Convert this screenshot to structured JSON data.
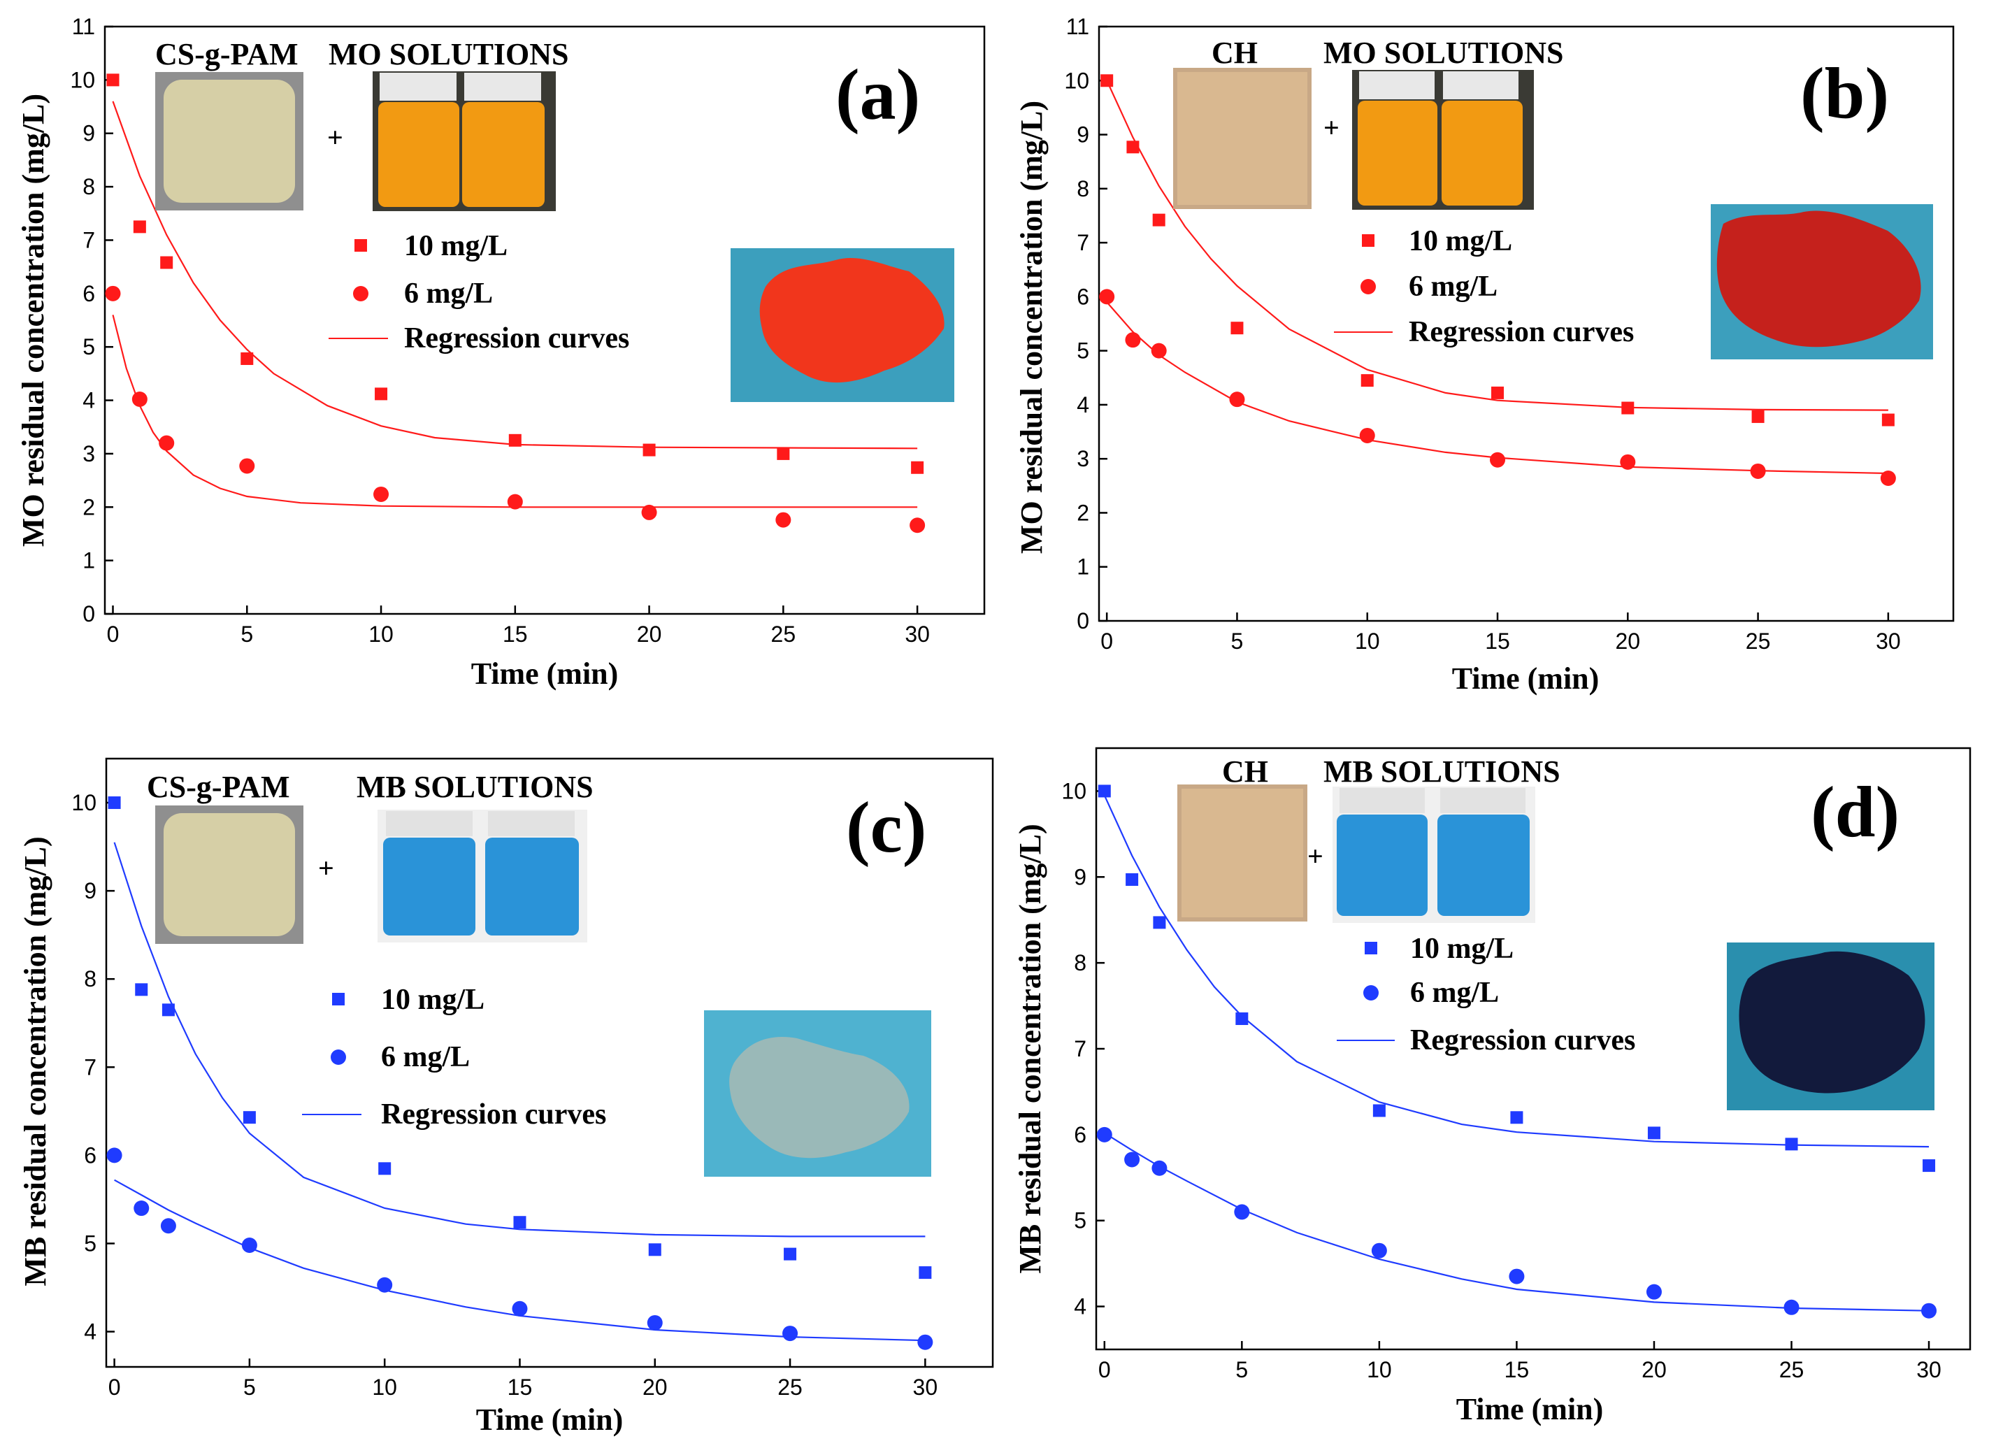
{
  "chart_data": [
    {
      "type": "scatter",
      "panel_label": "(a)",
      "xlabel": "Time (min)",
      "ylabel": "MO residual concentration (mg/L)",
      "xlim": [
        -0.3,
        32.5
      ],
      "ylim": [
        0,
        11
      ],
      "xticks": [
        0,
        5,
        10,
        15,
        20,
        25,
        30
      ],
      "yticks": [
        0,
        1,
        2,
        3,
        4,
        5,
        6,
        7,
        8,
        9,
        10,
        11
      ],
      "color": "#ff1a1a",
      "adsorbent_label": "CS-g-PAM",
      "solution_label": "MO SOLUTIONS",
      "plus": "+",
      "legend": {
        "position": "upper-middle",
        "entries": [
          "10 mg/L",
          "6 mg/L",
          "Regression curves"
        ]
      },
      "inset_colors": {
        "adsorbent": "#d6cfa6",
        "solution": "#f29a12",
        "result_bg": "#3c9fbd",
        "result_blob": "#f1361c"
      },
      "series": [
        {
          "name": "10 mg/L",
          "marker": "square",
          "x": [
            0,
            1,
            2,
            5,
            10,
            15,
            20,
            25,
            30
          ],
          "y": [
            10.0,
            7.25,
            6.58,
            4.78,
            4.12,
            3.25,
            3.07,
            3.0,
            2.74
          ]
        },
        {
          "name": "6 mg/L",
          "marker": "circle",
          "x": [
            0,
            1,
            2,
            5,
            10,
            15,
            20,
            25,
            30
          ],
          "y": [
            6.0,
            4.02,
            3.2,
            2.77,
            2.24,
            2.1,
            1.9,
            1.76,
            1.66
          ]
        }
      ],
      "fits": [
        {
          "name": "Regression curves",
          "for": "10 mg/L",
          "x": [
            0,
            1,
            2,
            3,
            4,
            5,
            6,
            8,
            10,
            12,
            15,
            20,
            25,
            30
          ],
          "y": [
            9.6,
            8.2,
            7.1,
            6.2,
            5.5,
            4.95,
            4.5,
            3.9,
            3.52,
            3.3,
            3.17,
            3.12,
            3.11,
            3.1
          ]
        },
        {
          "name": "Regression curves",
          "for": "6 mg/L",
          "x": [
            0,
            0.5,
            1,
            1.5,
            2,
            3,
            4,
            5,
            7,
            10,
            15,
            20,
            25,
            30
          ],
          "y": [
            5.6,
            4.6,
            3.9,
            3.4,
            3.05,
            2.6,
            2.35,
            2.2,
            2.08,
            2.02,
            2.0,
            2.0,
            2.0,
            2.0
          ]
        }
      ]
    },
    {
      "type": "scatter",
      "panel_label": "(b)",
      "xlabel": "Time (min)",
      "ylabel": "MO residual concentration (mg/L)",
      "xlim": [
        -0.3,
        32.5
      ],
      "ylim": [
        0,
        11
      ],
      "xticks": [
        0,
        5,
        10,
        15,
        20,
        25,
        30
      ],
      "yticks": [
        0,
        1,
        2,
        3,
        4,
        5,
        6,
        7,
        8,
        9,
        10,
        11
      ],
      "color": "#ff1a1a",
      "adsorbent_label": "CH",
      "solution_label": "MO SOLUTIONS",
      "plus": "+",
      "legend": {
        "position": "upper-middle",
        "entries": [
          "10 mg/L",
          "6 mg/L",
          "Regression curves"
        ]
      },
      "inset_colors": {
        "adsorbent": "#d9b890",
        "solution": "#f29a12",
        "result_bg": "#3c9fbd",
        "result_blob": "#c5211c"
      },
      "series": [
        {
          "name": "10 mg/L",
          "marker": "square",
          "x": [
            0,
            1,
            2,
            5,
            10,
            15,
            20,
            25,
            30
          ],
          "y": [
            10.0,
            8.77,
            7.42,
            5.42,
            4.45,
            4.22,
            3.94,
            3.78,
            3.72
          ]
        },
        {
          "name": "6 mg/L",
          "marker": "circle",
          "x": [
            0,
            1,
            2,
            5,
            10,
            15,
            20,
            25,
            30
          ],
          "y": [
            6.0,
            5.2,
            5.0,
            4.1,
            3.43,
            2.98,
            2.94,
            2.77,
            2.64
          ]
        }
      ],
      "fits": [
        {
          "name": "Regression curves",
          "for": "10 mg/L",
          "x": [
            0,
            1,
            2,
            3,
            4,
            5,
            7,
            10,
            13,
            15,
            20,
            25,
            30
          ],
          "y": [
            10.0,
            8.95,
            8.05,
            7.3,
            6.7,
            6.2,
            5.4,
            4.65,
            4.22,
            4.08,
            3.95,
            3.91,
            3.9
          ]
        },
        {
          "name": "Regression curves",
          "for": "6 mg/L",
          "x": [
            0,
            1,
            2,
            3,
            5,
            7,
            10,
            13,
            15,
            20,
            25,
            30
          ],
          "y": [
            5.9,
            5.35,
            4.92,
            4.6,
            4.05,
            3.7,
            3.35,
            3.12,
            3.02,
            2.85,
            2.78,
            2.73
          ]
        }
      ]
    },
    {
      "type": "scatter",
      "panel_label": "(c)",
      "xlabel": "Time (min)",
      "ylabel": "MB residual concentration (mg/L)",
      "xlim": [
        -0.3,
        32.5
      ],
      "ylim": [
        3.6,
        10.5
      ],
      "xticks": [
        0,
        5,
        10,
        15,
        20,
        25,
        30
      ],
      "yticks": [
        4,
        5,
        6,
        7,
        8,
        9,
        10
      ],
      "color": "#1f3bff",
      "adsorbent_label": "CS-g-PAM",
      "solution_label": "MB SOLUTIONS",
      "plus": "+",
      "legend": {
        "position": "middle",
        "entries": [
          "10 mg/L",
          "6 mg/L",
          "Regression curves"
        ]
      },
      "inset_colors": {
        "adsorbent": "#d6cfa6",
        "solution": "#2a93d8",
        "result_bg": "#4fb2d0",
        "result_blob": "#9ab9b8"
      },
      "series": [
        {
          "name": "10 mg/L",
          "marker": "square",
          "x": [
            0,
            1,
            2,
            5,
            10,
            15,
            20,
            25,
            30
          ],
          "y": [
            10.0,
            7.88,
            7.65,
            6.43,
            5.85,
            5.24,
            4.93,
            4.88,
            4.67
          ]
        },
        {
          "name": "6 mg/L",
          "marker": "circle",
          "x": [
            0,
            1,
            2,
            5,
            10,
            15,
            20,
            25,
            30
          ],
          "y": [
            6.0,
            5.4,
            5.2,
            4.98,
            4.53,
            4.26,
            4.1,
            3.98,
            3.88
          ]
        }
      ],
      "fits": [
        {
          "name": "Regression curves",
          "for": "10 mg/L",
          "x": [
            0,
            1,
            2,
            3,
            4,
            5,
            7,
            10,
            13,
            15,
            20,
            25,
            30
          ],
          "y": [
            9.55,
            8.6,
            7.8,
            7.15,
            6.65,
            6.25,
            5.75,
            5.4,
            5.22,
            5.16,
            5.1,
            5.08,
            5.08
          ]
        },
        {
          "name": "Regression curves",
          "for": "6 mg/L",
          "x": [
            0,
            1,
            2,
            3,
            5,
            7,
            10,
            13,
            15,
            20,
            25,
            30
          ],
          "y": [
            5.72,
            5.55,
            5.38,
            5.23,
            4.95,
            4.72,
            4.47,
            4.28,
            4.18,
            4.02,
            3.94,
            3.9
          ]
        }
      ]
    },
    {
      "type": "scatter",
      "panel_label": "(d)",
      "xlabel": "Time (min)",
      "ylabel": "MB residual concentration (mg/L)",
      "xlim": [
        -0.3,
        31.5
      ],
      "ylim": [
        3.5,
        10.5
      ],
      "xticks": [
        0,
        5,
        10,
        15,
        20,
        25,
        30
      ],
      "yticks": [
        4,
        5,
        6,
        7,
        8,
        9,
        10
      ],
      "color": "#1f3bff",
      "adsorbent_label": "CH",
      "solution_label": "MB SOLUTIONS",
      "plus": "+",
      "legend": {
        "position": "upper-middle",
        "entries": [
          "10 mg/L",
          "6 mg/L",
          "Regression curves"
        ]
      },
      "inset_colors": {
        "adsorbent": "#d9b890",
        "solution": "#2a93d8",
        "result_bg": "#2a8fae",
        "result_blob": "#121a3c"
      },
      "series": [
        {
          "name": "10 mg/L",
          "marker": "square",
          "x": [
            0,
            1,
            2,
            5,
            10,
            15,
            20,
            25,
            30
          ],
          "y": [
            10.0,
            8.97,
            8.47,
            7.35,
            6.28,
            6.2,
            6.02,
            5.89,
            5.64
          ]
        },
        {
          "name": "6 mg/L",
          "marker": "circle",
          "x": [
            0,
            1,
            2,
            5,
            10,
            15,
            20,
            25,
            30
          ],
          "y": [
            6.0,
            5.71,
            5.61,
            5.1,
            4.65,
            4.35,
            4.17,
            3.99,
            3.95
          ]
        }
      ],
      "fits": [
        {
          "name": "Regression curves",
          "for": "10 mg/L",
          "x": [
            0,
            1,
            2,
            3,
            4,
            5,
            7,
            10,
            13,
            15,
            20,
            25,
            30
          ],
          "y": [
            9.95,
            9.25,
            8.65,
            8.15,
            7.72,
            7.38,
            6.85,
            6.38,
            6.12,
            6.03,
            5.92,
            5.88,
            5.86
          ]
        },
        {
          "name": "Regression curves",
          "for": "6 mg/L",
          "x": [
            0,
            1,
            2,
            3,
            5,
            7,
            10,
            13,
            15,
            20,
            25,
            30
          ],
          "y": [
            6.02,
            5.82,
            5.63,
            5.46,
            5.13,
            4.86,
            4.55,
            4.32,
            4.2,
            4.05,
            3.98,
            3.95
          ]
        }
      ]
    }
  ]
}
